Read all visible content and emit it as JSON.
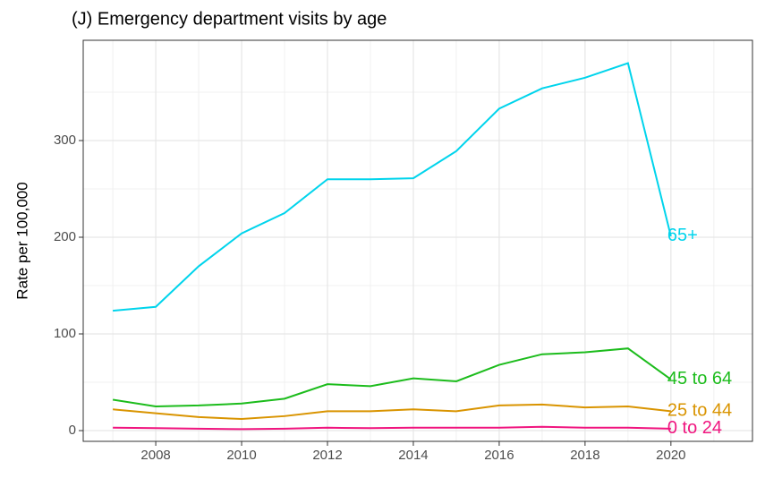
{
  "chart_data": {
    "type": "line",
    "title": "(J) Emergency department visits by age",
    "y_label": "Rate per 100,000",
    "x": [
      2007,
      2008,
      2009,
      2010,
      2011,
      2012,
      2013,
      2014,
      2015,
      2016,
      2017,
      2018,
      2019,
      2020
    ],
    "series": [
      {
        "name": "65+",
        "color": "#00d4ec",
        "values": [
          124,
          128,
          170,
          204,
          225,
          260,
          260,
          261,
          289,
          333,
          354,
          365,
          380,
          201
        ]
      },
      {
        "name": "45 to 64",
        "color": "#1cbc1c",
        "values": [
          32,
          25,
          26,
          28,
          33,
          48,
          46,
          54,
          51,
          68,
          79,
          81,
          85,
          53
        ]
      },
      {
        "name": "25 to 44",
        "color": "#d99400",
        "values": [
          22,
          18,
          14,
          12,
          15,
          20,
          20,
          22,
          20,
          26,
          27,
          24,
          25,
          20
        ]
      },
      {
        "name": "0 to 24",
        "color": "#f0157f",
        "values": [
          3,
          2.5,
          2,
          1.5,
          2,
          3,
          2.5,
          3,
          3,
          3,
          4,
          3,
          3,
          2
        ]
      }
    ],
    "xlim": [
      2006.31,
      2021.9
    ],
    "ylim": [
      -11.1,
      403.7
    ],
    "xticks": [
      2008,
      2010,
      2012,
      2014,
      2016,
      2018,
      2020
    ],
    "yticks": [
      0,
      100,
      200,
      300
    ],
    "grid": true
  }
}
